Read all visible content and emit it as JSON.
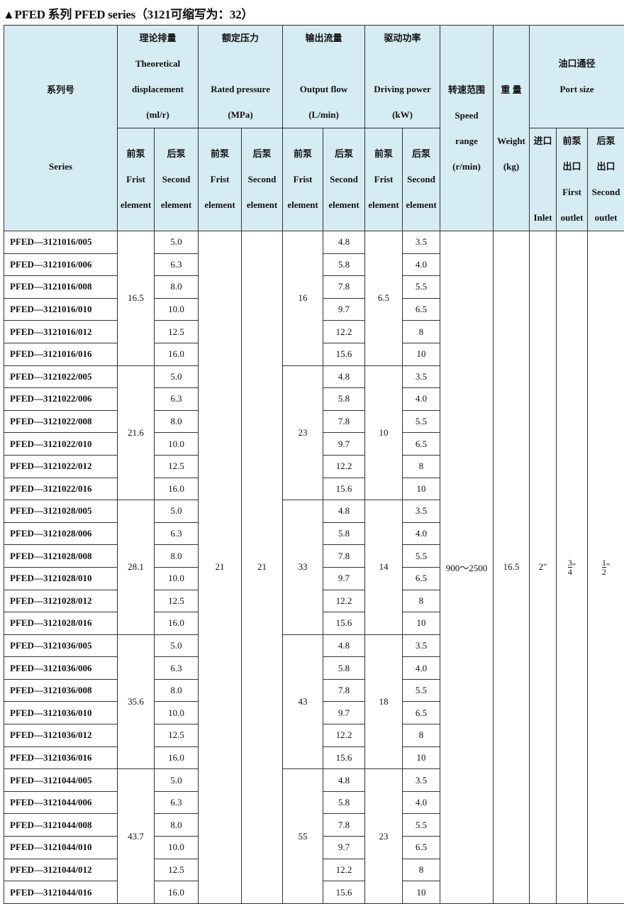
{
  "title": "▲PFED 系列 PFED series（3121可缩写为：32）",
  "header": {
    "series": {
      "cn": "系列号",
      "en": "Series"
    },
    "displacement": {
      "cn": "理论排量",
      "en1": "Theoretical",
      "en2": "displacement",
      "unit": "(ml/r)"
    },
    "pressure": {
      "cn": "额定压力",
      "en": "Rated pressure",
      "unit": "(MPa)"
    },
    "flow": {
      "cn": "输出流量",
      "en": "Output flow",
      "unit": "(L/min)"
    },
    "power": {
      "cn": "驱动功率",
      "en": "Driving power",
      "unit": "(kW)"
    },
    "front": {
      "cn": "前泵",
      "en1": "Frist",
      "en2": "element"
    },
    "rear": {
      "cn": "后泵",
      "en1": "Second",
      "en2": "element"
    },
    "speed": {
      "cn": "转速范围",
      "en1": "Speed",
      "en2": "range",
      "unit": "(r/min)"
    },
    "weight": {
      "cn": "重 量",
      "en": "Weight",
      "unit": "(kg)"
    },
    "port": {
      "cn": "油口通径",
      "en": "Port size"
    },
    "inlet": {
      "cn": "进口",
      "en": "Inlet"
    },
    "first_outlet": {
      "cn1": "前泵",
      "cn2": "出口",
      "en1": "First",
      "en2": "outlet"
    },
    "second_outlet": {
      "cn1": "后泵",
      "cn2": "出口",
      "en1": "Second",
      "en2": "outlet"
    }
  },
  "shared": {
    "pressure_front": "21",
    "pressure_rear": "21",
    "speed": "900～2500",
    "weight": "16.5",
    "inlet": "2″",
    "first_outlet": {
      "num": "3",
      "den": "4",
      "mark": "″"
    },
    "second_outlet": {
      "num": "1",
      "den": "2",
      "mark": "″"
    }
  },
  "groups": [
    {
      "disp_front": "16.5",
      "flow_front": "16",
      "power_front": "6.5",
      "rows": [
        {
          "series": "PFED—3121016/005",
          "disp_rear": "5.0",
          "flow_rear": "4.8",
          "power_rear": "3.5"
        },
        {
          "series": "PFED—3121016/006",
          "disp_rear": "6.3",
          "flow_rear": "5.8",
          "power_rear": "4.0"
        },
        {
          "series": "PFED—3121016/008",
          "disp_rear": "8.0",
          "flow_rear": "7.8",
          "power_rear": "5.5"
        },
        {
          "series": "PFED—3121016/010",
          "disp_rear": "10.0",
          "flow_rear": "9.7",
          "power_rear": "6.5"
        },
        {
          "series": "PFED—3121016/012",
          "disp_rear": "12.5",
          "flow_rear": "12.2",
          "power_rear": "8"
        },
        {
          "series": "PFED—3121016/016",
          "disp_rear": "16.0",
          "flow_rear": "15.6",
          "power_rear": "10"
        }
      ]
    },
    {
      "disp_front": "21.6",
      "flow_front": "23",
      "power_front": "10",
      "rows": [
        {
          "series": "PFED—3121022/005",
          "disp_rear": "5.0",
          "flow_rear": "4.8",
          "power_rear": "3.5"
        },
        {
          "series": "PFED—3121022/006",
          "disp_rear": "6.3",
          "flow_rear": "5.8",
          "power_rear": "4.0"
        },
        {
          "series": "PFED—3121022/008",
          "disp_rear": "8.0",
          "flow_rear": "7.8",
          "power_rear": "5.5"
        },
        {
          "series": "PFED—3121022/010",
          "disp_rear": "10.0",
          "flow_rear": "9.7",
          "power_rear": "6.5"
        },
        {
          "series": "PFED—3121022/012",
          "disp_rear": "12.5",
          "flow_rear": "12.2",
          "power_rear": "8"
        },
        {
          "series": "PFED—3121022/016",
          "disp_rear": "16.0",
          "flow_rear": "15.6",
          "power_rear": "10"
        }
      ]
    },
    {
      "disp_front": "28.1",
      "flow_front": "33",
      "power_front": "14",
      "rows": [
        {
          "series": "PFED—3121028/005",
          "disp_rear": "5.0",
          "flow_rear": "4.8",
          "power_rear": "3.5"
        },
        {
          "series": "PFED—3121028/006",
          "disp_rear": "6.3",
          "flow_rear": "5.8",
          "power_rear": "4.0"
        },
        {
          "series": "PFED—3121028/008",
          "disp_rear": "8.0",
          "flow_rear": "7.8",
          "power_rear": "5.5"
        },
        {
          "series": "PFED—3121028/010",
          "disp_rear": "10.0",
          "flow_rear": "9.7",
          "power_rear": "6.5"
        },
        {
          "series": "PFED—3121028/012",
          "disp_rear": "12.5",
          "flow_rear": "12.2",
          "power_rear": "8"
        },
        {
          "series": "PFED—3121028/016",
          "disp_rear": "16.0",
          "flow_rear": "15.6",
          "power_rear": "10"
        }
      ]
    },
    {
      "disp_front": "35.6",
      "flow_front": "43",
      "power_front": "18",
      "rows": [
        {
          "series": "PFED—3121036/005",
          "disp_rear": "5.0",
          "flow_rear": "4.8",
          "power_rear": "3.5"
        },
        {
          "series": "PFED—3121036/006",
          "disp_rear": "6.3",
          "flow_rear": "5.8",
          "power_rear": "4.0"
        },
        {
          "series": "PFED—3121036/008",
          "disp_rear": "8.0",
          "flow_rear": "7.8",
          "power_rear": "5.5"
        },
        {
          "series": "PFED—3121036/010",
          "disp_rear": "10.0",
          "flow_rear": "9.7",
          "power_rear": "6.5"
        },
        {
          "series": "PFED—3121036/012",
          "disp_rear": "12.5",
          "flow_rear": "12.2",
          "power_rear": "8"
        },
        {
          "series": "PFED—3121036/016",
          "disp_rear": "16.0",
          "flow_rear": "15.6",
          "power_rear": "10"
        }
      ]
    },
    {
      "disp_front": "43.7",
      "flow_front": "55",
      "power_front": "23",
      "rows": [
        {
          "series": "PFED—3121044/005",
          "disp_rear": "5.0",
          "flow_rear": "4.8",
          "power_rear": "3.5"
        },
        {
          "series": "PFED—3121044/006",
          "disp_rear": "6.3",
          "flow_rear": "5.8",
          "power_rear": "4.0"
        },
        {
          "series": "PFED—3121044/008",
          "disp_rear": "8.0",
          "flow_rear": "7.8",
          "power_rear": "5.5"
        },
        {
          "series": "PFED—3121044/010",
          "disp_rear": "10.0",
          "flow_rear": "9.7",
          "power_rear": "6.5"
        },
        {
          "series": "PFED—3121044/012",
          "disp_rear": "12.5",
          "flow_rear": "12.2",
          "power_rear": "8"
        },
        {
          "series": "PFED—3121044/016",
          "disp_rear": "16.0",
          "flow_rear": "15.6",
          "power_rear": "10"
        }
      ]
    }
  ]
}
